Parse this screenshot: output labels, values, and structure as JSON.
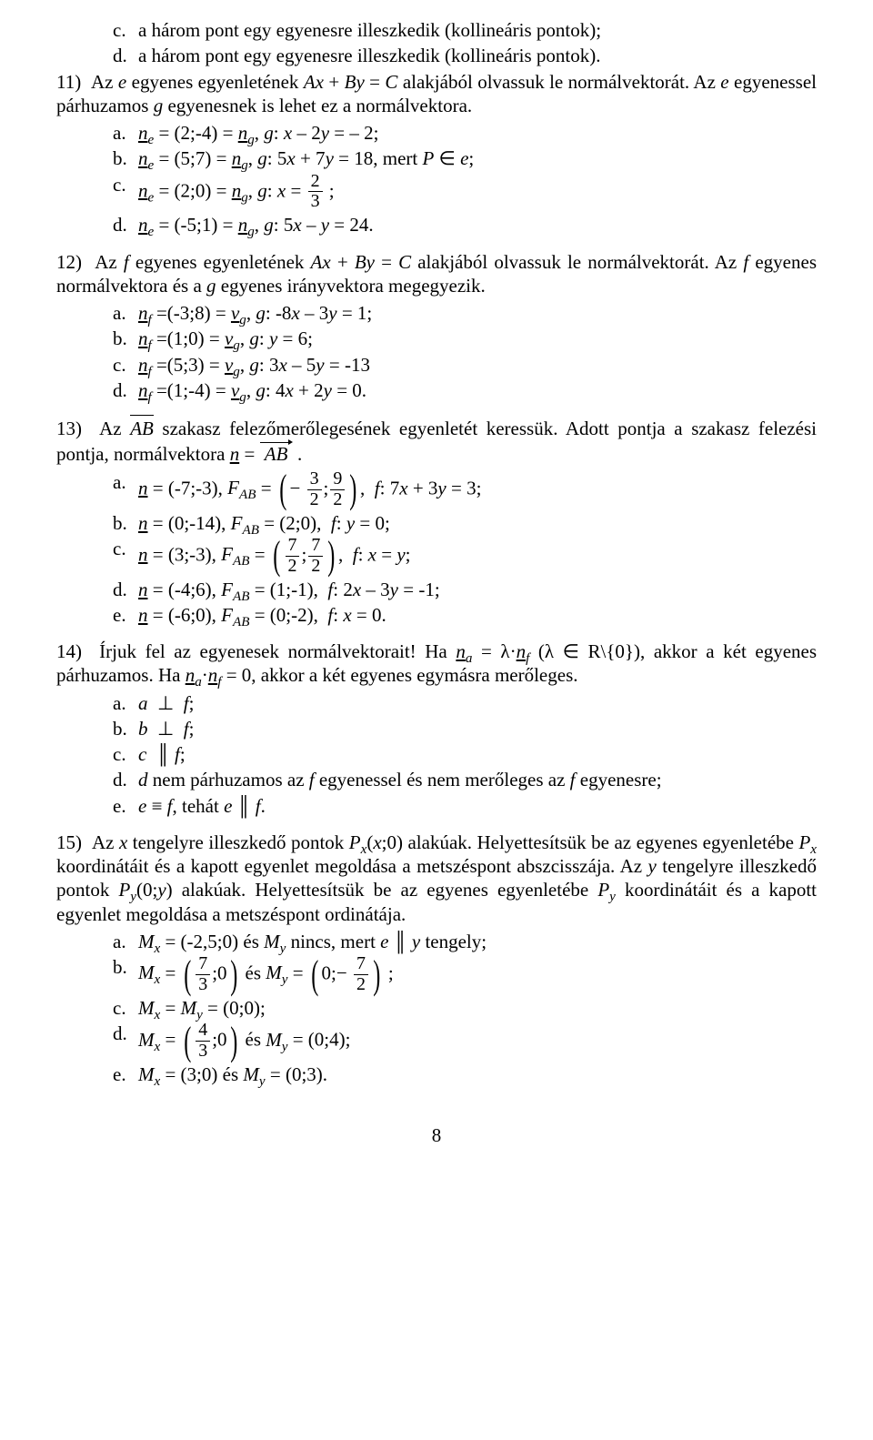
{
  "pre_c": "a három pont egy egyenesre illeszkedik (kollineáris pontok);",
  "pre_d": "a három pont egy egyenesre illeszkedik (kollineáris pontok).",
  "q11_intro_a": "Az ",
  "q11_intro_b": " egyenes egyenletének ",
  "q11_intro_c": " alakjából olvassuk le normálvektorát. Az ",
  "q11_intro_d": " egyenessel párhuzamos ",
  "q11_intro_e": " egyenesnek is lehet ez a normálvektora.",
  "q11_a_post": " – 2;",
  "q11_b_post": " = 18, mert ",
  "q11_d_post": " = 24.",
  "q12_intro_a": "Az ",
  "q12_intro_b": " egyenes egyenletének ",
  "q12_intro_c": " alakjából olvassuk le normálvektorát. Az ",
  "q12_intro_d": " egyenes normálvektora és a ",
  "q12_intro_e": " egyenes irányvektora megegyezik.",
  "q12_a_post": " = 1;",
  "q12_b_post": " = 6;",
  "q12_c_post": " = -13",
  "q12_d_post": " = 0.",
  "q13_intro_a": "Az ",
  "q13_intro_b": " szakasz felezőmerőlegesének egyenletét keressük. Adott pontja a szakasz felezési pontja, normálvektora ",
  "q13_a_post": " = 3;",
  "q13_b_post": " = 0;",
  "q13_d_post": " = -1;",
  "q13_e_post": " = 0.",
  "q14_intro_a": "Írjuk fel az egyenesek normálvektorait! Ha ",
  "q14_intro_b": " (λ ∈ R\\{0}), akkor a két egyenes párhuzamos. Ha ",
  "q14_intro_c": " = 0, akkor a két egyenes egymásra merőleges.",
  "q14_d_text": " nem párhuzamos az ",
  "q14_d_text2": " egyenessel és nem merőleges az ",
  "q14_d_text3": " egyenesre;",
  "q14_e_text": ", tehát ",
  "q15_intro_a": "Az ",
  "q15_intro_b": " tengelyre illeszkedő pontok ",
  "q15_intro_c": ";0) alakúak. Helyettesítsük be az egyenes egyenletébe ",
  "q15_intro_d": " koordinátáit és a kapott egyenlet megoldása a metszéspont abszcisszája. Az ",
  "q15_intro_e": " tengelyre illeszkedő pontok ",
  "q15_intro_f": ") alakúak. Helyettesítsük be az egyenes egyenletébe ",
  "q15_intro_g": " koordinátáit és a kapott egyenlet megoldása a metszéspont ordinátája.",
  "q15_a1": " = (-2,5;0) és ",
  "q15_a2": " nincs, mert ",
  "q15_a3": " tengely;",
  "q15_c1": " = (0;0);",
  "q15_d2": " = (0;4);",
  "q15_e1": " = (3;0) és ",
  "q15_e2": " = (0;3).",
  "pagenum": "8",
  "frac_2": "2",
  "frac_3": "3",
  "frac_9": "9",
  "frac_7": "7",
  "frac_4": "4"
}
